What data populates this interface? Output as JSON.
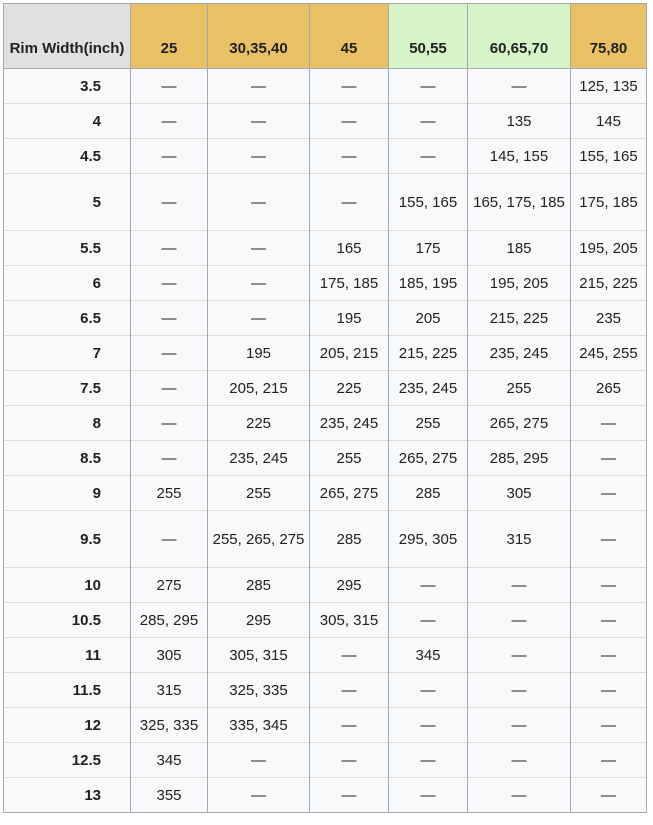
{
  "header": [
    {
      "label": "Rim Width(inch)",
      "color": "#e0e0e0"
    },
    {
      "label": "25",
      "color": "#eac064"
    },
    {
      "label": "30,35,40",
      "color": "#eac064"
    },
    {
      "label": "45",
      "color": "#eac064"
    },
    {
      "label": "50,55",
      "color": "#d6f4c8"
    },
    {
      "label": "60,65,70",
      "color": "#d6f4c8"
    },
    {
      "label": "75,80",
      "color": "#eac064"
    }
  ],
  "rows": [
    [
      "3.5",
      "—",
      "—",
      "—",
      "—",
      "—",
      "125, 135"
    ],
    [
      "4",
      "—",
      "—",
      "—",
      "—",
      "135",
      "145"
    ],
    [
      "4.5",
      "—",
      "—",
      "—",
      "—",
      "145, 155",
      "155, 165"
    ],
    [
      "5",
      "—",
      "—",
      "—",
      "155, 165",
      "165, 175, 185",
      "175, 185"
    ],
    [
      "5.5",
      "—",
      "—",
      "165",
      "175",
      "185",
      "195, 205"
    ],
    [
      "6",
      "—",
      "—",
      "175, 185",
      "185, 195",
      "195, 205",
      "215, 225"
    ],
    [
      "6.5",
      "—",
      "—",
      "195",
      "205",
      "215, 225",
      "235"
    ],
    [
      "7",
      "—",
      "195",
      "205, 215",
      "215, 225",
      "235, 245",
      "245, 255"
    ],
    [
      "7.5",
      "—",
      "205, 215",
      "225",
      "235, 245",
      "255",
      "265"
    ],
    [
      "8",
      "—",
      "225",
      "235, 245",
      "255",
      "265, 275",
      "—"
    ],
    [
      "8.5",
      "—",
      "235, 245",
      "255",
      "265, 275",
      "285, 295",
      "—"
    ],
    [
      "9",
      "255",
      "255",
      "265, 275",
      "285",
      "305",
      "—"
    ],
    [
      "9.5",
      "—",
      "255, 265, 275",
      "285",
      "295, 305",
      "315",
      "—"
    ],
    [
      "10",
      "275",
      "285",
      "295",
      "—",
      "—",
      "—"
    ],
    [
      "10.5",
      "285, 295",
      "295",
      "305, 315",
      "—",
      "—",
      "—"
    ],
    [
      "11",
      "305",
      "305, 315",
      "—",
      "345",
      "—",
      "—"
    ],
    [
      "11.5",
      "315",
      "325, 335",
      "—",
      "—",
      "—",
      "—"
    ],
    [
      "12",
      "325, 335",
      "335, 345",
      "—",
      "—",
      "—",
      "—"
    ],
    [
      "12.5",
      "345",
      "—",
      "—",
      "—",
      "—",
      "—"
    ],
    [
      "13",
      "355",
      "—",
      "—",
      "—",
      "—",
      "—"
    ]
  ]
}
